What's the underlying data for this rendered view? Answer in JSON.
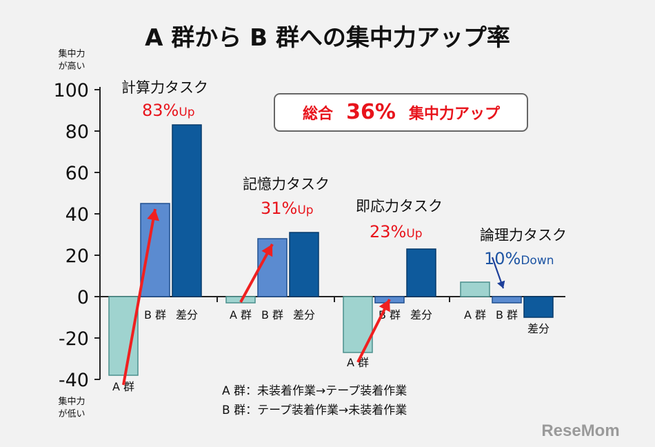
{
  "title": "A 群から B 群への集中力アップ率",
  "y_top_note": [
    "集中力",
    "が高い"
  ],
  "y_bottom_note": [
    "集中力",
    "が低い"
  ],
  "badge": {
    "prefix": "総合",
    "value": "36%",
    "suffix": "集中力アップ"
  },
  "notes": [
    "A 群：未装着作業→テープ装着作業",
    "B 群：テープ装着作業→未装着作業"
  ],
  "logo": "ReseMom",
  "colors": {
    "group_a": "#9fd3cf",
    "group_b": "#5b8bd0",
    "diff": "#0e5a9c",
    "arrow": "#f02020",
    "up_text": "#e8141c",
    "down_text": "#1d54a3",
    "down_arrow": "#1d3f9a"
  },
  "chart_data": {
    "type": "bar",
    "ylim": [
      -40,
      100
    ],
    "yticks": [
      "100",
      "80",
      "60",
      "40",
      "20",
      "0",
      "-20",
      "-40"
    ],
    "grid": false,
    "categories": [
      "A 群",
      "B 群",
      "差分"
    ],
    "groups": [
      {
        "task": "計算力タスク",
        "change_value": "83%",
        "change_dir": "Up",
        "values": [
          -38,
          45,
          83
        ]
      },
      {
        "task": "記憶力タスク",
        "change_value": "31%",
        "change_dir": "Up",
        "values": [
          -3,
          28,
          31
        ]
      },
      {
        "task": "即応力タスク",
        "change_value": "23%",
        "change_dir": "Up",
        "values": [
          -27,
          -3,
          23
        ]
      },
      {
        "task": "論理力タスク",
        "change_value": "10%",
        "change_dir": "Down",
        "values": [
          7,
          -3,
          -10
        ]
      }
    ]
  }
}
